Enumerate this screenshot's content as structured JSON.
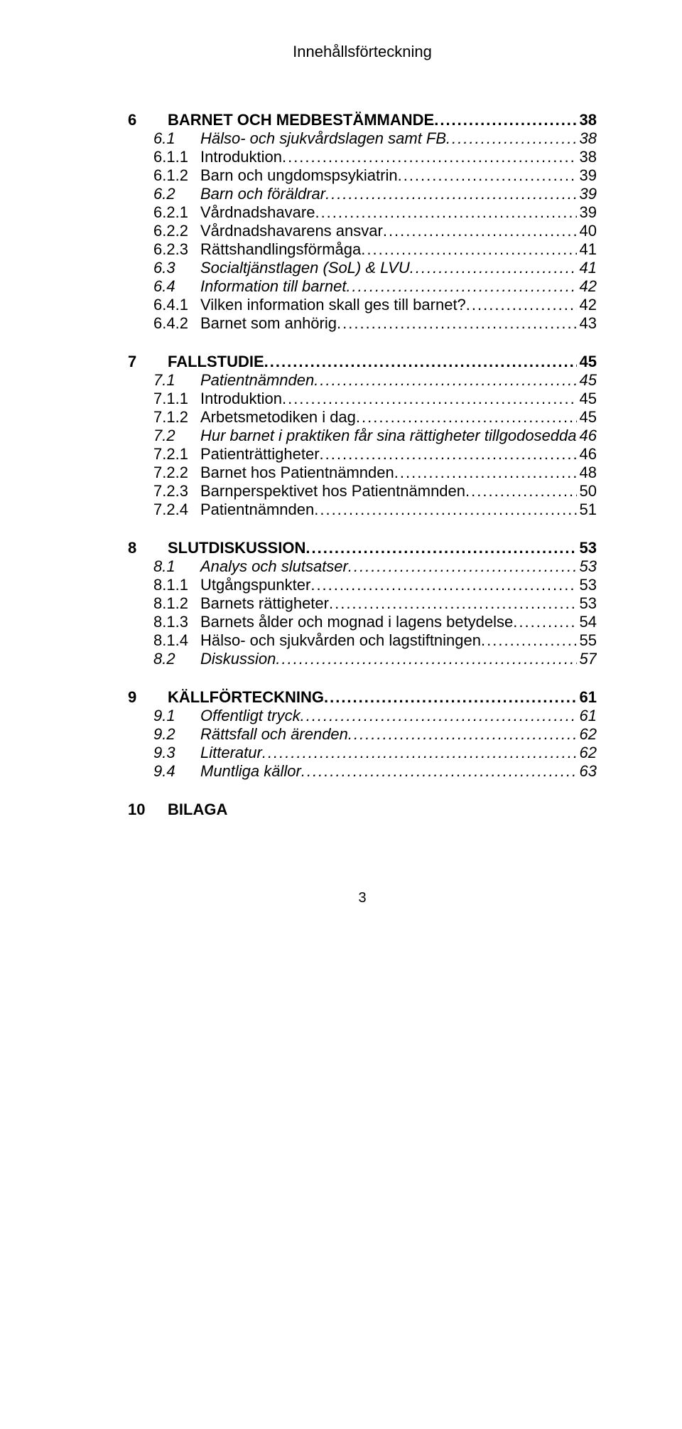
{
  "header": "Innehållsförteckning",
  "footer_page": "3",
  "toc": [
    {
      "level": 1,
      "num": "6",
      "label": "BARNET OCH MEDBESTÄMMANDE",
      "page": "38"
    },
    {
      "level": 2,
      "num": "6.1",
      "label": "Hälso- och sjukvårdslagen samt FB",
      "page": "38"
    },
    {
      "level": 3,
      "num": "6.1.1",
      "label": "Introduktion",
      "page": "38"
    },
    {
      "level": 3,
      "num": "6.1.2",
      "label": "Barn och ungdomspsykiatrin",
      "page": "39"
    },
    {
      "level": 2,
      "num": "6.2",
      "label": "Barn och föräldrar",
      "page": "39"
    },
    {
      "level": 3,
      "num": "6.2.1",
      "label": "Vårdnadshavare",
      "page": "39"
    },
    {
      "level": 3,
      "num": "6.2.2",
      "label": "Vårdnadshavarens ansvar",
      "page": "40"
    },
    {
      "level": 3,
      "num": "6.2.3",
      "label": "Rättshandlingsförmåga",
      "page": "41"
    },
    {
      "level": 2,
      "num": "6.3",
      "label": "Socialtjänstlagen (SoL) & LVU",
      "page": "41"
    },
    {
      "level": 2,
      "num": "6.4",
      "label": "Information till barnet",
      "page": "42"
    },
    {
      "level": 3,
      "num": "6.4.1",
      "label": "Vilken information skall ges till barnet?",
      "page": "42"
    },
    {
      "level": 3,
      "num": "6.4.2",
      "label": "Barnet som anhörig",
      "page": "43"
    },
    {
      "level": 1,
      "num": "7",
      "label": "FALLSTUDIE",
      "page": "45"
    },
    {
      "level": 2,
      "num": "7.1",
      "label": "Patientnämnden",
      "page": "45"
    },
    {
      "level": 3,
      "num": "7.1.1",
      "label": "Introduktion",
      "page": "45"
    },
    {
      "level": 3,
      "num": "7.1.2",
      "label": "Arbetsmetodiken i dag",
      "page": "45"
    },
    {
      "level": 2,
      "num": "7.2",
      "label": "Hur barnet i praktiken får sina rättigheter tillgodosedda",
      "page": "46"
    },
    {
      "level": 3,
      "num": "7.2.1",
      "label": "Patienträttigheter",
      "page": "46"
    },
    {
      "level": 3,
      "num": "7.2.2",
      "label": "Barnet hos Patientnämnden",
      "page": "48"
    },
    {
      "level": 3,
      "num": "7.2.3",
      "label": "Barnperspektivet hos Patientnämnden",
      "page": "50"
    },
    {
      "level": 3,
      "num": "7.2.4",
      "label": "Patientnämnden",
      "page": "51"
    },
    {
      "level": 1,
      "num": "8",
      "label": "SLUTDISKUSSION",
      "page": "53"
    },
    {
      "level": 2,
      "num": "8.1",
      "label": "Analys och slutsatser",
      "page": "53"
    },
    {
      "level": 3,
      "num": "8.1.1",
      "label": "Utgångspunkter",
      "page": "53"
    },
    {
      "level": 3,
      "num": "8.1.2",
      "label": "Barnets rättigheter",
      "page": "53"
    },
    {
      "level": 3,
      "num": "8.1.3",
      "label": "Barnets ålder och mognad i lagens betydelse",
      "page": "54"
    },
    {
      "level": 3,
      "num": "8.1.4",
      "label": "Hälso- och sjukvården och lagstiftningen",
      "page": "55"
    },
    {
      "level": 2,
      "num": "8.2",
      "label": "Diskussion",
      "page": "57"
    },
    {
      "level": 1,
      "num": "9",
      "label": "KÄLLFÖRTECKNING",
      "page": "61"
    },
    {
      "level": 2,
      "num": "9.1",
      "label": "Offentligt tryck",
      "page": "61"
    },
    {
      "level": 2,
      "num": "9.2",
      "label": "Rättsfall och ärenden",
      "page": "62"
    },
    {
      "level": 2,
      "num": "9.3",
      "label": "Litteratur",
      "page": "62"
    },
    {
      "level": 2,
      "num": "9.4",
      "label": "Muntliga källor",
      "page": "63"
    },
    {
      "level": 1,
      "num": "10",
      "label": "BILAGA",
      "page": null
    }
  ]
}
